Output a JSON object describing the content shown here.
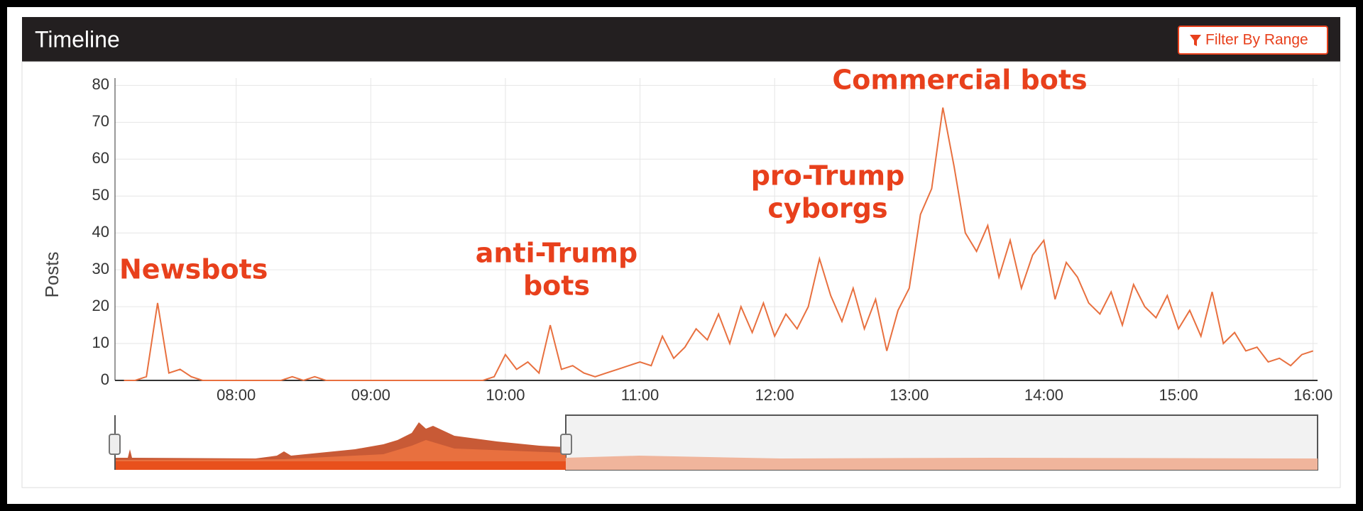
{
  "header": {
    "title": "Timeline",
    "button": "Filter By Range"
  },
  "chart_data": {
    "type": "line",
    "y_label": "Posts",
    "color": "#e8703f",
    "grid": true,
    "ylim": [
      0,
      82
    ],
    "yticks": [
      0,
      10,
      20,
      30,
      40,
      50,
      60,
      70,
      80
    ],
    "xlim": [
      "07:06",
      "16:02"
    ],
    "xticks": [
      "08:00",
      "09:00",
      "10:00",
      "11:00",
      "12:00",
      "13:00",
      "14:00",
      "15:00",
      "16:00"
    ],
    "annotations": [
      {
        "lines": [
          "Newsbots"
        ]
      },
      {
        "lines": [
          "anti-Trump",
          "bots"
        ]
      },
      {
        "lines": [
          "pro-Trump",
          "cyborgs"
        ]
      },
      {
        "lines": [
          "Commercial bots"
        ]
      }
    ],
    "x": [
      "07:10",
      "07:15",
      "07:20",
      "07:25",
      "07:30",
      "07:35",
      "07:40",
      "07:45",
      "07:50",
      "07:55",
      "08:00",
      "08:05",
      "08:10",
      "08:15",
      "08:20",
      "08:25",
      "08:30",
      "08:35",
      "08:40",
      "08:45",
      "08:50",
      "08:55",
      "09:00",
      "09:05",
      "09:10",
      "09:15",
      "09:20",
      "09:25",
      "09:30",
      "09:35",
      "09:40",
      "09:45",
      "09:50",
      "09:55",
      "10:00",
      "10:05",
      "10:10",
      "10:15",
      "10:20",
      "10:25",
      "10:30",
      "10:35",
      "10:40",
      "10:45",
      "10:50",
      "10:55",
      "11:00",
      "11:05",
      "11:10",
      "11:15",
      "11:20",
      "11:25",
      "11:30",
      "11:35",
      "11:40",
      "11:45",
      "11:50",
      "11:55",
      "12:00",
      "12:05",
      "12:10",
      "12:15",
      "12:20",
      "12:25",
      "12:30",
      "12:35",
      "12:40",
      "12:45",
      "12:50",
      "12:55",
      "13:00",
      "13:05",
      "13:10",
      "13:15",
      "13:20",
      "13:25",
      "13:30",
      "13:35",
      "13:40",
      "13:45",
      "13:50",
      "13:55",
      "14:00",
      "14:05",
      "14:10",
      "14:15",
      "14:20",
      "14:25",
      "14:30",
      "14:35",
      "14:40",
      "14:45",
      "14:50",
      "14:55",
      "15:00",
      "15:05",
      "15:10",
      "15:15",
      "15:20",
      "15:25",
      "15:30",
      "15:35",
      "15:40",
      "15:45",
      "15:50",
      "15:55",
      "16:00"
    ],
    "values": [
      0,
      0,
      1,
      21,
      2,
      3,
      1,
      0,
      0,
      0,
      0,
      0,
      0,
      0,
      0,
      1,
      0,
      1,
      0,
      0,
      0,
      0,
      0,
      0,
      0,
      0,
      0,
      0,
      0,
      0,
      0,
      0,
      0,
      1,
      7,
      3,
      5,
      2,
      15,
      3,
      4,
      2,
      1,
      2,
      3,
      4,
      5,
      4,
      12,
      6,
      9,
      14,
      11,
      18,
      10,
      20,
      13,
      21,
      12,
      18,
      14,
      20,
      33,
      23,
      16,
      25,
      14,
      22,
      8,
      19,
      25,
      45,
      52,
      74,
      58,
      40,
      35,
      42,
      28,
      38,
      25,
      34,
      38,
      22,
      32,
      28,
      21,
      18,
      24,
      15,
      26,
      20,
      17,
      23,
      14,
      19,
      12,
      24,
      10,
      13,
      8,
      9,
      5,
      6,
      4,
      7,
      8
    ]
  }
}
